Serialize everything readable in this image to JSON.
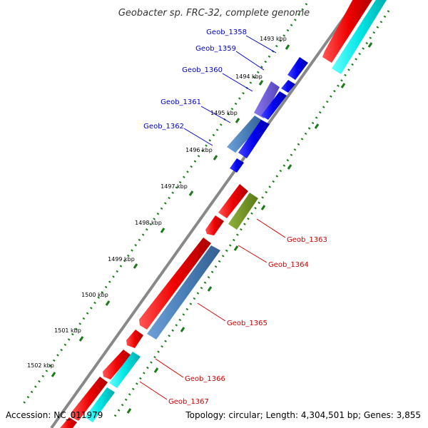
{
  "title": "Geobacter sp. FRC-32, complete genome",
  "footer": {
    "accession": "Accession: NC_011979",
    "topology": "Topology: circular; Length: 4,304,501 bp; Genes: 3,855"
  },
  "ticks": [
    {
      "label": "1493 kbp"
    },
    {
      "label": "1494 kbp"
    },
    {
      "label": "1495 kbp"
    },
    {
      "label": "1496 kbp"
    },
    {
      "label": "1497 kbp"
    },
    {
      "label": "1498 kbp"
    },
    {
      "label": "1499 kbp"
    },
    {
      "label": "1500 kbp"
    },
    {
      "label": "1501 kbp"
    },
    {
      "label": "1502 kbp"
    }
  ],
  "gene_labels_left": [
    {
      "label": "Geob_1358",
      "color": "#0000cc"
    },
    {
      "label": "Geob_1359",
      "color": "#0000cc"
    },
    {
      "label": "Geob_1360",
      "color": "#0000cc"
    },
    {
      "label": "Geob_1361",
      "color": "#0000cc"
    },
    {
      "label": "Geob_1362",
      "color": "#0000cc"
    }
  ],
  "gene_labels_right": [
    {
      "label": "Geob_1363",
      "color": "#cc0000"
    },
    {
      "label": "Geob_1364",
      "color": "#cc0000"
    },
    {
      "label": "Geob_1365",
      "color": "#cc0000"
    },
    {
      "label": "Geob_1366",
      "color": "#cc0000"
    },
    {
      "label": "Geob_1367",
      "color": "#cc0000"
    }
  ],
  "colors": {
    "forward_cds": "#ee0000",
    "reverse_cds": "#0000ee",
    "cyan_feature": "#00dddd",
    "steelblue_feature": "#4a7fb8",
    "violet_feature": "#6655cc",
    "olive_feature": "#6b8e23",
    "backbone": "#888888",
    "dots": "#1a7a1a"
  }
}
